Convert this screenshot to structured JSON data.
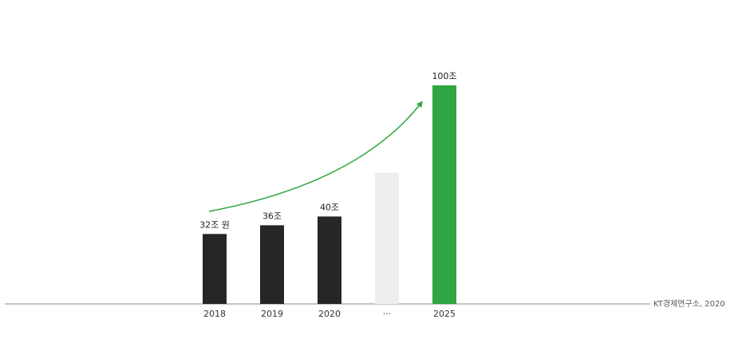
{
  "chart_data": {
    "type": "bar",
    "categories": [
      "2018",
      "2019",
      "2020",
      "···",
      "2025"
    ],
    "values": [
      32,
      36,
      40,
      null,
      100
    ],
    "value_labels": [
      "32조 원",
      "36조",
      "40조",
      "",
      "100조"
    ],
    "gap_bar_value": 60,
    "colors": {
      "actual": "#262626",
      "gap": "#eeeeee",
      "target": "#2ea641",
      "trend_arrow": "#2ea641",
      "baseline": "#8a8a8a"
    },
    "trend_arrow": true,
    "grid": false,
    "source": "KT경제연구소, 2020"
  }
}
